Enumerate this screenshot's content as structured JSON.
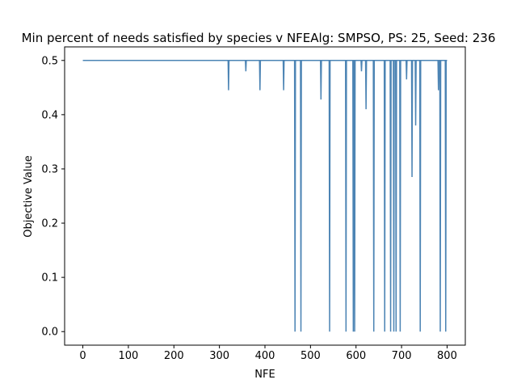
{
  "chart_data": {
    "type": "line",
    "title": "Min percent of needs satisfied by species v NFEAlg: SMPSO, PS: 25, Seed: 236",
    "xlabel": "NFE",
    "ylabel": "Objective Value",
    "xlim": [
      -40,
      840
    ],
    "ylim": [
      -0.025,
      0.525
    ],
    "xticks": [
      0,
      100,
      200,
      300,
      400,
      500,
      600,
      700,
      800
    ],
    "yticks": [
      0.0,
      0.1,
      0.2,
      0.3,
      0.4,
      0.5
    ],
    "ytick_labels": [
      "0.0",
      "0.1",
      "0.2",
      "0.3",
      "0.4",
      "0.5"
    ],
    "grid": false,
    "legend": "none",
    "line_color": "#4c84b4",
    "baseline": 0.5,
    "x_range": [
      0,
      800
    ],
    "dips": [
      {
        "x": 320,
        "y": 0.445
      },
      {
        "x": 358,
        "y": 0.48
      },
      {
        "x": 389,
        "y": 0.445
      },
      {
        "x": 441,
        "y": 0.445
      },
      {
        "x": 466,
        "y": 0.0
      },
      {
        "x": 479,
        "y": 0.0
      },
      {
        "x": 523,
        "y": 0.428
      },
      {
        "x": 542,
        "y": 0.0
      },
      {
        "x": 578,
        "y": 0.0
      },
      {
        "x": 594,
        "y": 0.0
      },
      {
        "x": 597,
        "y": 0.0
      },
      {
        "x": 612,
        "y": 0.48
      },
      {
        "x": 622,
        "y": 0.41
      },
      {
        "x": 639,
        "y": 0.0
      },
      {
        "x": 663,
        "y": 0.0
      },
      {
        "x": 676,
        "y": 0.0
      },
      {
        "x": 683,
        "y": 0.0
      },
      {
        "x": 688,
        "y": 0.0
      },
      {
        "x": 697,
        "y": 0.0
      },
      {
        "x": 711,
        "y": 0.465
      },
      {
        "x": 723,
        "y": 0.285
      },
      {
        "x": 731,
        "y": 0.38
      },
      {
        "x": 741,
        "y": 0.0
      },
      {
        "x": 781,
        "y": 0.445
      },
      {
        "x": 785,
        "y": 0.0
      },
      {
        "x": 797,
        "y": 0.0
      }
    ]
  }
}
